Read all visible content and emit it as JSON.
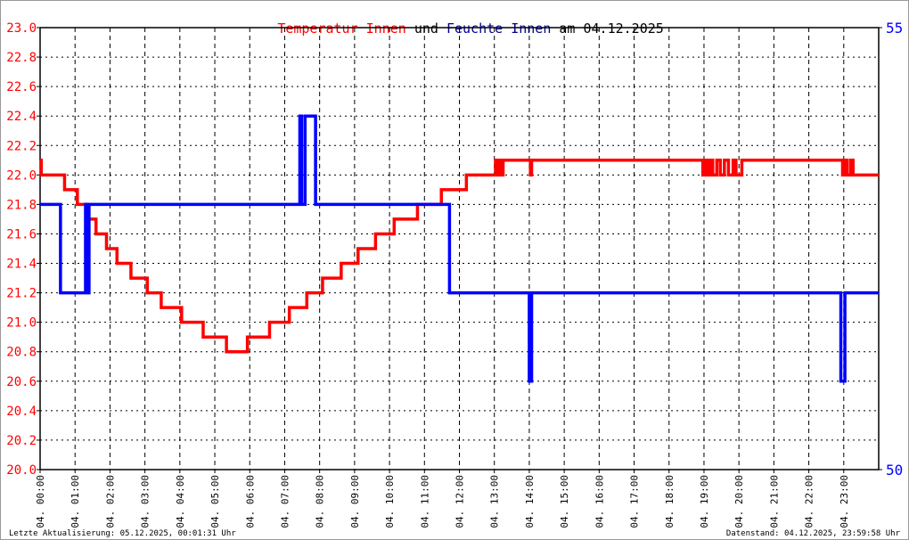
{
  "chart_data": {
    "type": "line",
    "title_parts": [
      {
        "text": "Temperatur Innen",
        "color": "#ff0000"
      },
      {
        "text": "und",
        "color": "#000000"
      },
      {
        "text": "Feuchte Innen",
        "color": "#00008b"
      },
      {
        "text": "am 04.12.2025",
        "color": "#000000"
      }
    ],
    "x_tick_labels": [
      "04. 00:00",
      "04. 01:00",
      "04. 02:00",
      "04. 03:00",
      "04. 04:00",
      "04. 05:00",
      "04. 06:00",
      "04. 07:00",
      "04. 08:00",
      "04. 09:00",
      "04. 10:00",
      "04. 11:00",
      "04. 12:00",
      "04. 13:00",
      "04. 14:00",
      "04. 15:00",
      "04. 16:00",
      "04. 17:00",
      "04. 18:00",
      "04. 19:00",
      "04. 20:00",
      "04. 21:00",
      "04. 22:00",
      "04. 23:00"
    ],
    "x_range_hours": [
      0,
      24
    ],
    "y_left": {
      "range": [
        20.0,
        23.0
      ],
      "step": 0.2,
      "color": "#ff0000",
      "tick_labels": [
        "20.0",
        "20.2",
        "20.4",
        "20.6",
        "20.8",
        "21.0",
        "21.2",
        "21.4",
        "21.6",
        "21.8",
        "22.0",
        "22.2",
        "22.4",
        "22.6",
        "22.8",
        "23.0"
      ]
    },
    "y_right": {
      "range": [
        50,
        55
      ],
      "color": "#0000ff",
      "tick_labels": [
        "50",
        "55"
      ]
    },
    "grid": true,
    "series": [
      {
        "name": "Temperatur Innen",
        "axis": "left",
        "color": "#ff0000",
        "step": true,
        "points": [
          [
            "00:00",
            22.1
          ],
          [
            "00:02",
            22.0
          ],
          [
            "00:42",
            21.9
          ],
          [
            "01:04",
            21.8
          ],
          [
            "01:21",
            21.7
          ],
          [
            "01:36",
            21.6
          ],
          [
            "01:54",
            21.5
          ],
          [
            "02:12",
            21.4
          ],
          [
            "02:36",
            21.3
          ],
          [
            "03:04",
            21.2
          ],
          [
            "03:28",
            21.1
          ],
          [
            "04:03",
            21.0
          ],
          [
            "04:40",
            20.9
          ],
          [
            "05:20",
            20.8
          ],
          [
            "05:56",
            20.9
          ],
          [
            "06:34",
            21.0
          ],
          [
            "07:08",
            21.1
          ],
          [
            "07:38",
            21.2
          ],
          [
            "08:05",
            21.3
          ],
          [
            "08:37",
            21.4
          ],
          [
            "09:06",
            21.5
          ],
          [
            "09:36",
            21.6
          ],
          [
            "10:08",
            21.7
          ],
          [
            "10:48",
            21.8
          ],
          [
            "11:29",
            21.9
          ],
          [
            "12:12",
            22.0
          ],
          [
            "13:02",
            22.1
          ],
          [
            "13:05",
            22.0
          ],
          [
            "13:08",
            22.1
          ],
          [
            "13:12",
            22.0
          ],
          [
            "13:15",
            22.1
          ],
          [
            "14:02",
            22.0
          ],
          [
            "14:04",
            22.1
          ],
          [
            "18:58",
            22.0
          ],
          [
            "19:00",
            22.1
          ],
          [
            "19:05",
            22.0
          ],
          [
            "19:10",
            22.1
          ],
          [
            "19:15",
            22.0
          ],
          [
            "19:22",
            22.1
          ],
          [
            "19:28",
            22.0
          ],
          [
            "19:35",
            22.1
          ],
          [
            "19:42",
            22.0
          ],
          [
            "19:50",
            22.1
          ],
          [
            "19:55",
            22.0
          ],
          [
            "20:05",
            22.1
          ],
          [
            "22:58",
            22.0
          ],
          [
            "23:02",
            22.1
          ],
          [
            "23:06",
            22.0
          ],
          [
            "23:12",
            22.1
          ],
          [
            "23:16",
            22.0
          ],
          [
            "24:00",
            22.0
          ]
        ]
      },
      {
        "name": "Feuchte Innen",
        "axis": "right",
        "color": "#0000ff",
        "step": true,
        "points": [
          [
            "00:00",
            53
          ],
          [
            "00:35",
            52
          ],
          [
            "01:18",
            53
          ],
          [
            "01:20",
            52
          ],
          [
            "01:24",
            53
          ],
          [
            "07:26",
            54
          ],
          [
            "07:29",
            53
          ],
          [
            "07:35",
            54
          ],
          [
            "07:53",
            53
          ],
          [
            "11:43",
            52
          ],
          [
            "14:00",
            51
          ],
          [
            "14:04",
            52
          ],
          [
            "22:55",
            51
          ],
          [
            "23:02",
            52
          ],
          [
            "24:00",
            52
          ]
        ]
      }
    ]
  },
  "footer": {
    "left": "Letzte Aktualisierung: 05.12.2025, 00:01:31 Uhr",
    "right": "Datenstand: 04.12.2025, 23:59:58 Uhr"
  }
}
